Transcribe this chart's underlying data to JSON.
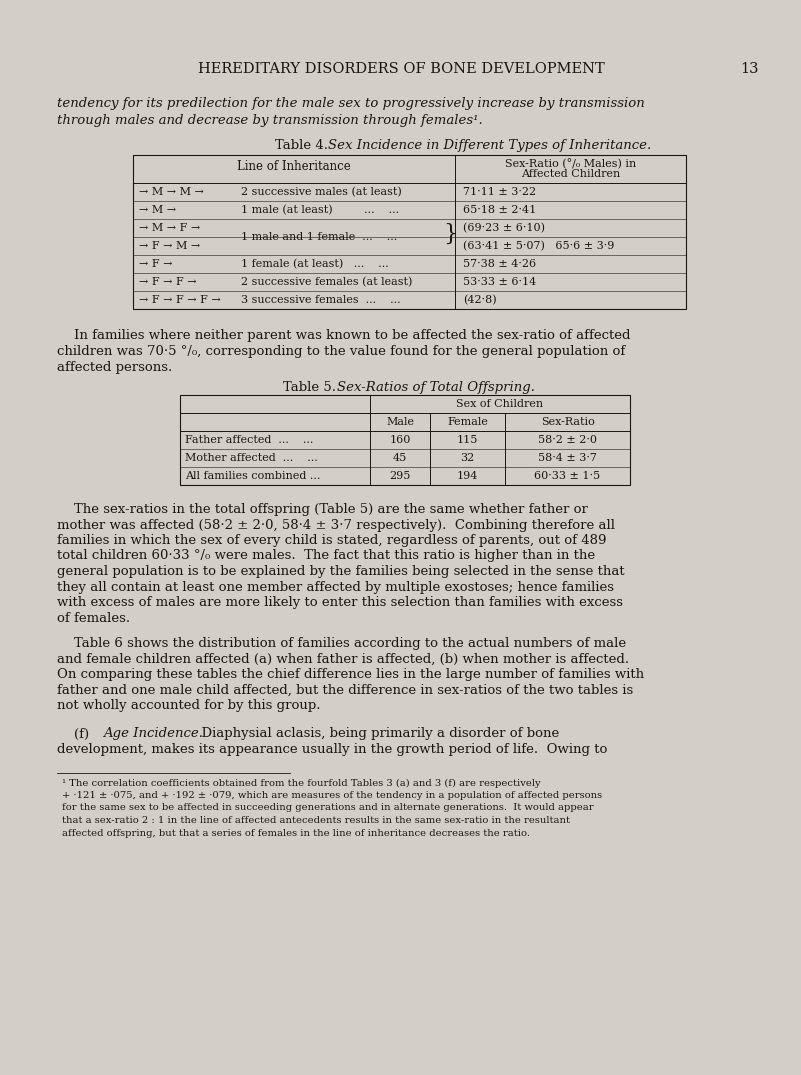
{
  "bg_color": "#d4cfc6",
  "text_color": "#1a1510",
  "header_text": "HEREDITARY DISORDERS OF BONE DEVELOPMENT",
  "page_number": "13",
  "intro_line1": "tendency for its predilection for the male sex to progressively increase by transmission",
  "intro_line2": "through males and decrease by transmission through females¹.",
  "table4_title_left": "Table 4.",
  "table4_title_right": "Sex Incidence in Different Types of Inheritance.",
  "t4_header1": "Line of Inheritance",
  "t4_header2a": "Sex-Ratio (°/₀ Males) in",
  "t4_header2b": "Affected Children",
  "t4_rows": [
    [
      "→ M → M →",
      "2 successive males (at least)",
      "71·11 ± 3·22"
    ],
    [
      "→ M →",
      "1 male (at least)         ...    ...",
      "65·18 ± 2·41"
    ],
    [
      "→ M → F →",
      "",
      "(69·23 ± 6·10)"
    ],
    [
      "→ F → M →",
      "1 male and 1 female  ...    ...",
      "(63·41 ± 5·07)   65·6 ± 3·9"
    ],
    [
      "→ F →",
      "1 female (at least)   ...    ...",
      "57·38 ± 4·26"
    ],
    [
      "→ F → F →",
      "2 successive females (at least)",
      "53·33 ± 6·14"
    ],
    [
      "→ F → F → F →",
      "3 successive females  ...    ...",
      "(42·8)"
    ]
  ],
  "para1_indent": "    In families where neither parent was known to be affected the sex-ratio of affected",
  "para1_line2": "children was 70·5 °/₀, corresponding to the value found for the general population of",
  "para1_line3": "affected persons.",
  "table5_title_left": "Table 5.",
  "table5_title_right": "Sex-Ratios of Total Offspring.",
  "t5_subheader": "Sex of Children",
  "t5_col_headers": [
    "Male",
    "Female",
    "Sex-Ratio"
  ],
  "t5_rows": [
    [
      "Father affected  ...    ...",
      "160",
      "115",
      "58·2 ± 2·0"
    ],
    [
      "Mother affected  ...    ...",
      "45",
      "32",
      "58·4 ± 3·7"
    ],
    [
      "All families combined ...",
      "295",
      "194",
      "60·33 ± 1·5"
    ]
  ],
  "para2": [
    "    The sex-ratios in the total offspring (Table 5) are the same whether father or",
    "mother was affected (58·2 ± 2·0, 58·4 ± 3·7 respectively).  Combining therefore all",
    "families in which the sex of every child is stated, regardless of parents, out of 489",
    "total children 60·33 °/₀ were males.  The fact that this ratio is higher than in the",
    "general population is to be explained by the families being selected in the sense that",
    "they all contain at least one member affected by multiple exostoses; hence families",
    "with excess of males are more likely to enter this selection than families with excess",
    "of females."
  ],
  "para3": [
    "    Table 6 shows the distribution of families according to the actual numbers of male",
    "and female children affected (a) when father is affected, (b) when mother is affected.",
    "On comparing these tables the chief difference lies in the large number of families with",
    "father and one male child affected, but the difference in sex-ratios of the two tables is",
    "not wholly accounted for by this group."
  ],
  "para4_prefix": "    (f) ",
  "para4_italic": "Age Incidence.",
  "para4_rest": "  Diaphysial aclasis, being primarily a disorder of bone",
  "para4_line2": "development, makes its appearance usually in the growth period of life.  Owing to",
  "footnote_lines": [
    "¹ The correlation coefficients obtained from the fourfold Tables 3 (a) and 3 (f) are respectively",
    "+ ·121 ± ·075, and + ·192 ± ·079, which are measures of the tendency in a population of affected persons",
    "for the same sex to be affected in succeeding generations and in alternate generations.  It would appear",
    "that a sex-ratio 2 : 1 in the line of affected antecedents results in the same sex-ratio in the resultant",
    "affected offspring, but that a series of females in the line of inheritance decreases the ratio."
  ]
}
